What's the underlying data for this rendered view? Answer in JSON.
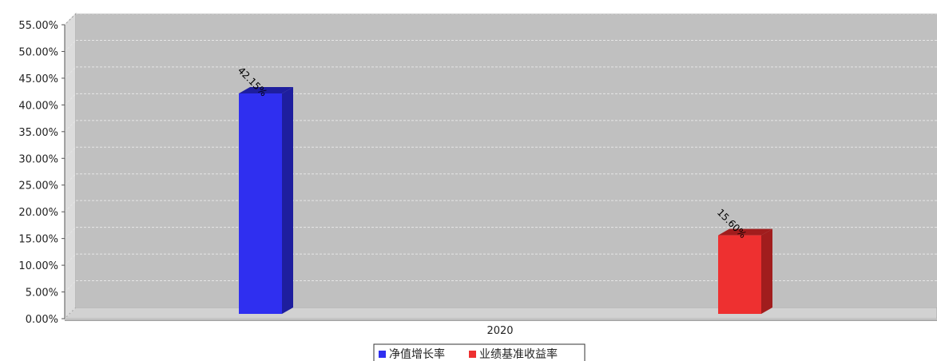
{
  "colors": {
    "plot_background": "#c0c0c0",
    "floor": "#d2d2d2",
    "wall": "#dcdcdc",
    "grid": "#e6e6e6"
  },
  "chart_data": {
    "type": "bar",
    "categories": [
      "2020"
    ],
    "ylim": [
      0,
      55
    ],
    "yticks": [
      "0.00%",
      "5.00%",
      "10.00%",
      "15.00%",
      "20.00%",
      "25.00%",
      "30.00%",
      "35.00%",
      "40.00%",
      "45.00%",
      "50.00%",
      "55.00%"
    ],
    "grid": true,
    "legend_position": "bottom",
    "series": [
      {
        "name": "净值增长率",
        "values": [
          42.15
        ],
        "label": "42.15%",
        "color": "#2f2ff0",
        "side_color": "#1e1e9e"
      },
      {
        "name": "业绩基准收益率",
        "values": [
          15.6
        ],
        "label": "15.60%",
        "color": "#ee3030",
        "side_color": "#a11d1d"
      }
    ]
  }
}
